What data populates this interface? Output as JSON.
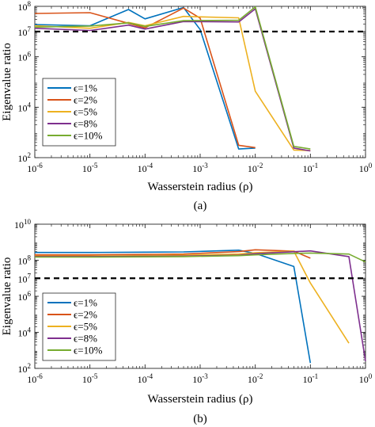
{
  "chart_data": [
    {
      "type": "line",
      "caption": "(a)",
      "xlabel": "Wasserstein radius (ρ)",
      "ylabel": "Eigenvalue ratio",
      "xscale": "log",
      "yscale": "log",
      "xlim": [
        1e-06,
        1
      ],
      "ylim": [
        100,
        100000000.0
      ],
      "x_ticks": [
        {
          "v": 1e-06,
          "base": "10",
          "exp": "-6"
        },
        {
          "v": 1e-05,
          "base": "10",
          "exp": "-5"
        },
        {
          "v": 0.0001,
          "base": "10",
          "exp": "-4"
        },
        {
          "v": 0.001,
          "base": "10",
          "exp": "-3"
        },
        {
          "v": 0.01,
          "base": "10",
          "exp": "-2"
        },
        {
          "v": 0.1,
          "base": "10",
          "exp": "-1"
        },
        {
          "v": 1,
          "base": "10",
          "exp": "0"
        }
      ],
      "y_ticks": [
        {
          "v": 100,
          "base": "10",
          "exp": "2"
        },
        {
          "v": 10000.0,
          "base": "10",
          "exp": "4"
        },
        {
          "v": 1000000.0,
          "base": "10",
          "exp": "6"
        },
        {
          "v": 10000000.0,
          "base": "10",
          "exp": "7"
        },
        {
          "v": 100000000.0,
          "base": "10",
          "exp": "8"
        }
      ],
      "threshold": 10000000.0,
      "legend_position": "bottom-left",
      "series": [
        {
          "name": "ϵ=1%",
          "color": "#0072BD",
          "points": [
            [
              1e-06,
              19000000.0
            ],
            [
              1e-05,
              17000000.0
            ],
            [
              5e-05,
              75000000.0
            ],
            [
              0.0001,
              32000000.0
            ],
            [
              0.0005,
              90000000.0
            ],
            [
              0.001,
              12000000.0
            ],
            [
              0.005,
              220
            ],
            [
              0.01,
              240
            ]
          ]
        },
        {
          "name": "ϵ=2%",
          "color": "#D95319",
          "points": [
            [
              1e-06,
              52000000.0
            ],
            [
              1e-05,
              56000000.0
            ],
            [
              0.0001,
              14000000.0
            ],
            [
              0.0005,
              85000000.0
            ],
            [
              0.001,
              34000000.0
            ],
            [
              0.005,
              310
            ],
            [
              0.01,
              250
            ]
          ]
        },
        {
          "name": "ϵ=5%",
          "color": "#EDB120",
          "points": [
            [
              1e-06,
              17000000.0
            ],
            [
              1e-05,
              13500000.0
            ],
            [
              5e-05,
              23000000.0
            ],
            [
              0.0001,
              17000000.0
            ],
            [
              0.0005,
              40000000.0
            ],
            [
              0.005,
              35000000.0
            ],
            [
              0.01,
              43000.0
            ],
            [
              0.05,
              200
            ],
            [
              0.1,
              190
            ]
          ]
        },
        {
          "name": "ϵ=8%",
          "color": "#7E2F8E",
          "points": [
            [
              1e-06,
              13500000.0
            ],
            [
              1e-05,
              11000000.0
            ],
            [
              5e-05,
              18000000.0
            ],
            [
              0.0001,
              12500000.0
            ],
            [
              0.0005,
              25000000.0
            ],
            [
              0.005,
              24000000.0
            ],
            [
              0.01,
              80000000.0
            ],
            [
              0.05,
              240
            ],
            [
              0.1,
              185
            ]
          ]
        },
        {
          "name": "ϵ=10%",
          "color": "#77AC30",
          "points": [
            [
              1e-06,
              15000000.0
            ],
            [
              1e-05,
              16500000.0
            ],
            [
              5e-05,
              22000000.0
            ],
            [
              0.0001,
              16000000.0
            ],
            [
              0.0005,
              27000000.0
            ],
            [
              0.005,
              28000000.0
            ],
            [
              0.01,
              95000000.0
            ],
            [
              0.05,
              280
            ],
            [
              0.1,
              220
            ]
          ]
        }
      ]
    },
    {
      "type": "line",
      "caption": "(b)",
      "xlabel": "Wasserstein radius (ρ)",
      "ylabel": "Eigenvalue ratio",
      "xscale": "log",
      "yscale": "log",
      "xlim": [
        1e-06,
        1
      ],
      "ylim": [
        100,
        10000000000.0
      ],
      "x_ticks": [
        {
          "v": 1e-06,
          "base": "10",
          "exp": "-6"
        },
        {
          "v": 1e-05,
          "base": "10",
          "exp": "-5"
        },
        {
          "v": 0.0001,
          "base": "10",
          "exp": "-4"
        },
        {
          "v": 0.001,
          "base": "10",
          "exp": "-3"
        },
        {
          "v": 0.01,
          "base": "10",
          "exp": "-2"
        },
        {
          "v": 0.1,
          "base": "10",
          "exp": "-1"
        },
        {
          "v": 1,
          "base": "10",
          "exp": "0"
        }
      ],
      "y_ticks": [
        {
          "v": 100,
          "base": "10",
          "exp": "2"
        },
        {
          "v": 10000.0,
          "base": "10",
          "exp": "4"
        },
        {
          "v": 1000000.0,
          "base": "10",
          "exp": "6"
        },
        {
          "v": 10000000.0,
          "base": "10",
          "exp": "7"
        },
        {
          "v": 100000000.0,
          "base": "10",
          "exp": "8"
        },
        {
          "v": 10000000000.0,
          "base": "10",
          "exp": "10"
        }
      ],
      "threshold": 10000000.0,
      "legend_position": "bottom-left",
      "series": [
        {
          "name": "ϵ=1%",
          "color": "#0072BD",
          "points": [
            [
              1e-06,
              270000000.0
            ],
            [
              1e-05,
              270000000.0
            ],
            [
              0.0001,
              280000000.0
            ],
            [
              0.0005,
              290000000.0
            ],
            [
              0.005,
              360000000.0
            ],
            [
              0.01,
              240000000.0
            ],
            [
              0.05,
              45000000.0
            ],
            [
              0.1,
              200
            ]
          ]
        },
        {
          "name": "ϵ=2%",
          "color": "#D95319",
          "points": [
            [
              1e-06,
              200000000.0
            ],
            [
              1e-05,
              200000000.0
            ],
            [
              0.0001,
              210000000.0
            ],
            [
              0.0005,
              220000000.0
            ],
            [
              0.005,
              300000000.0
            ],
            [
              0.01,
              380000000.0
            ],
            [
              0.05,
              320000000.0
            ],
            [
              0.1,
              130000000.0
            ]
          ]
        },
        {
          "name": "ϵ=5%",
          "color": "#EDB120",
          "points": [
            [
              1e-06,
              170000000.0
            ],
            [
              1e-05,
              170000000.0
            ],
            [
              0.0001,
              180000000.0
            ],
            [
              0.0005,
              190000000.0
            ],
            [
              0.005,
              220000000.0
            ],
            [
              0.01,
              260000000.0
            ],
            [
              0.05,
              320000000.0
            ],
            [
              0.1,
              5500000.0
            ],
            [
              0.5,
              2500
            ]
          ]
        },
        {
          "name": "ϵ=8%",
          "color": "#7E2F8E",
          "points": [
            [
              1e-06,
              160000000.0
            ],
            [
              1e-05,
              160000000.0
            ],
            [
              0.0001,
              165000000.0
            ],
            [
              0.0005,
              170000000.0
            ],
            [
              0.005,
              190000000.0
            ],
            [
              0.01,
              230000000.0
            ],
            [
              0.1,
              330000000.0
            ],
            [
              0.5,
              160000000.0
            ],
            [
              1,
              250
            ]
          ]
        },
        {
          "name": "ϵ=10%",
          "color": "#77AC30",
          "points": [
            [
              1e-06,
              150000000.0
            ],
            [
              1e-05,
              150000000.0
            ],
            [
              0.0001,
              155000000.0
            ],
            [
              0.0005,
              160000000.0
            ],
            [
              0.005,
              180000000.0
            ],
            [
              0.01,
              200000000.0
            ],
            [
              0.05,
              240000000.0
            ],
            [
              0.1,
              250000000.0
            ],
            [
              0.5,
              220000000.0
            ],
            [
              1,
              80000000.0
            ]
          ]
        }
      ]
    }
  ]
}
